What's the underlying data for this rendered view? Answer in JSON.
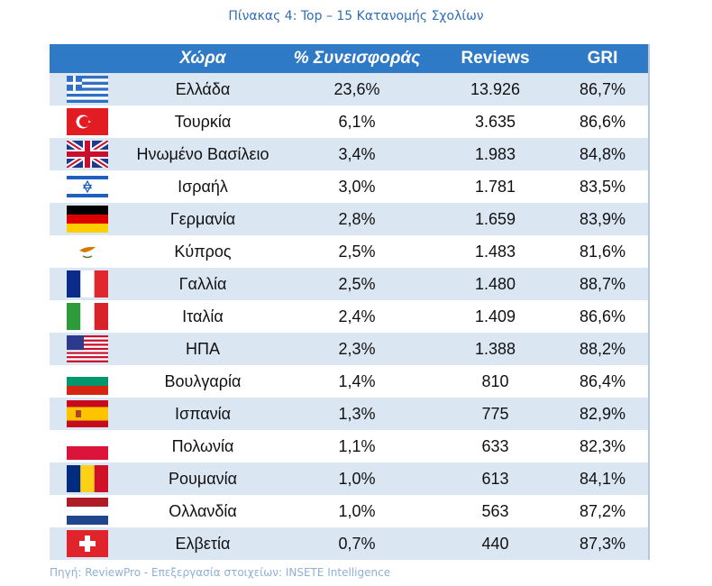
{
  "caption": "Πίνακας 4: Top – 15 Κατανομής Σχολίων",
  "headers": {
    "country": "Χώρα",
    "percent": "% Συνεισφοράς",
    "reviews": "Reviews",
    "gri": "GRI"
  },
  "rows": [
    {
      "flag": "greece-flag-icon",
      "country": "Ελλάδα",
      "percent": "23,6%",
      "reviews": "13.926",
      "gri": "86,7%"
    },
    {
      "flag": "turkey-flag-icon",
      "country": "Τουρκία",
      "percent": "6,1%",
      "reviews": "3.635",
      "gri": "86,6%"
    },
    {
      "flag": "uk-flag-icon",
      "country": "Ηνωμένο Βασίλειο",
      "percent": "3,4%",
      "reviews": "1.983",
      "gri": "84,8%"
    },
    {
      "flag": "israel-flag-icon",
      "country": "Ισραήλ",
      "percent": "3,0%",
      "reviews": "1.781",
      "gri": "83,5%"
    },
    {
      "flag": "germany-flag-icon",
      "country": "Γερμανία",
      "percent": "2,8%",
      "reviews": "1.659",
      "gri": "83,9%"
    },
    {
      "flag": "cyprus-flag-icon",
      "country": "Κύπρος",
      "percent": "2,5%",
      "reviews": "1.483",
      "gri": "81,6%"
    },
    {
      "flag": "france-flag-icon",
      "country": "Γαλλία",
      "percent": "2,5%",
      "reviews": "1.480",
      "gri": "88,7%"
    },
    {
      "flag": "italy-flag-icon",
      "country": "Ιταλία",
      "percent": "2,4%",
      "reviews": "1.409",
      "gri": "86,6%"
    },
    {
      "flag": "usa-flag-icon",
      "country": "ΗΠΑ",
      "percent": "2,3%",
      "reviews": "1.388",
      "gri": "88,2%"
    },
    {
      "flag": "bulgaria-flag-icon",
      "country": "Βουλγαρία",
      "percent": "1,4%",
      "reviews": "810",
      "gri": "86,4%"
    },
    {
      "flag": "spain-flag-icon",
      "country": "Ισπανία",
      "percent": "1,3%",
      "reviews": "775",
      "gri": "82,9%"
    },
    {
      "flag": "poland-flag-icon",
      "country": "Πολωνία",
      "percent": "1,1%",
      "reviews": "633",
      "gri": "82,3%"
    },
    {
      "flag": "romania-flag-icon",
      "country": "Ρουμανία",
      "percent": "1,0%",
      "reviews": "613",
      "gri": "84,1%"
    },
    {
      "flag": "netherlands-flag-icon",
      "country": "Ολλανδία",
      "percent": "1,0%",
      "reviews": "563",
      "gri": "87,2%"
    },
    {
      "flag": "switzerland-flag-icon",
      "country": "Ελβετία",
      "percent": "0,7%",
      "reviews": "440",
      "gri": "87,3%"
    }
  ],
  "footer": "Πηγή: ReviewPro - Επεξεργασία στοιχείων: INSETE Intelligence",
  "colors": {
    "header_bg": "#2e7ac6",
    "row_stripe": "#dbe6f3",
    "caption_text": "#2f6fb5"
  }
}
